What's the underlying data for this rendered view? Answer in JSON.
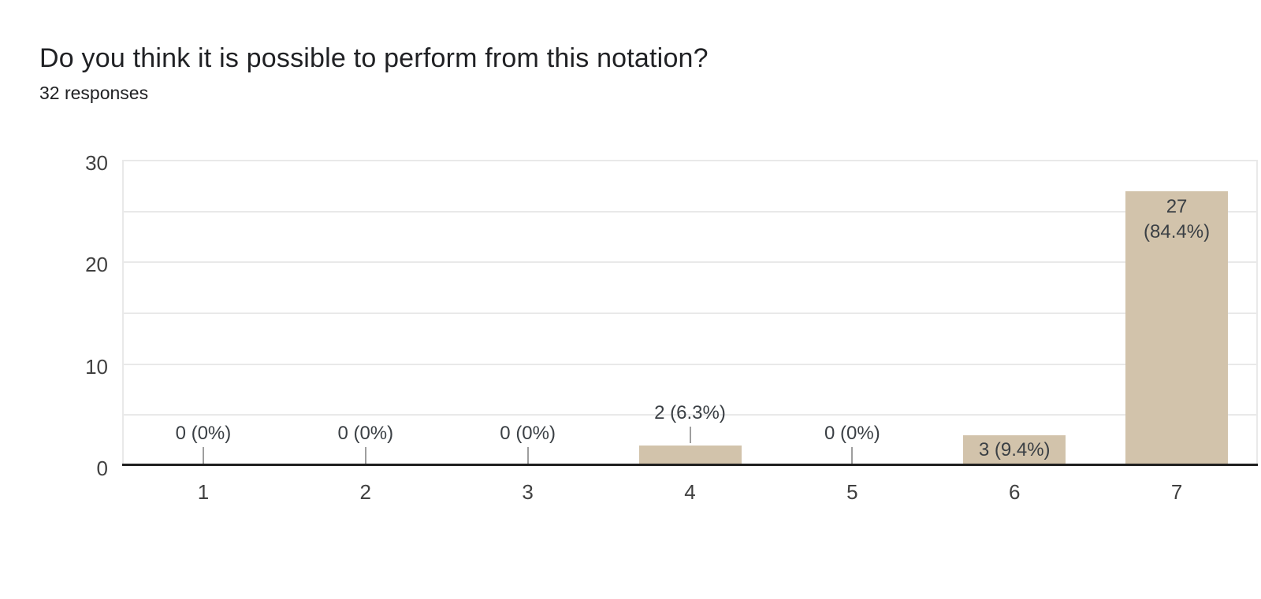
{
  "chart_data": {
    "type": "bar",
    "title": "Do you think it is possible to perform from this notation?",
    "subtitle": "32 responses",
    "categories": [
      "1",
      "2",
      "3",
      "4",
      "5",
      "6",
      "7"
    ],
    "values": [
      0,
      0,
      0,
      2,
      0,
      3,
      27
    ],
    "point_labels": [
      [
        "0 (0%)"
      ],
      [
        "0 (0%)"
      ],
      [
        "0 (0%)"
      ],
      [
        "2 (6.3%)"
      ],
      [
        "0 (0%)"
      ],
      [
        "3 (9.4%)"
      ],
      [
        "27",
        "(84.4%)"
      ]
    ],
    "label_placement": [
      "above",
      "above",
      "above",
      "above",
      "above",
      "inside",
      "inside-top"
    ],
    "xlabel": "",
    "ylabel": "",
    "ylim": [
      0,
      30
    ],
    "yticks": [
      0,
      10,
      20,
      30
    ],
    "grid_step": 5,
    "grid": "horizontal",
    "legend_position": "none",
    "colors": {
      "bar": "#d2c3ab",
      "gridline": "#e9e9e9",
      "baseline": "#1f1f1f",
      "axis_label": "#404040",
      "annotation": "#3a3f44",
      "stem": "#9e9e9e",
      "title": "#202124",
      "background": "#ffffff"
    }
  }
}
